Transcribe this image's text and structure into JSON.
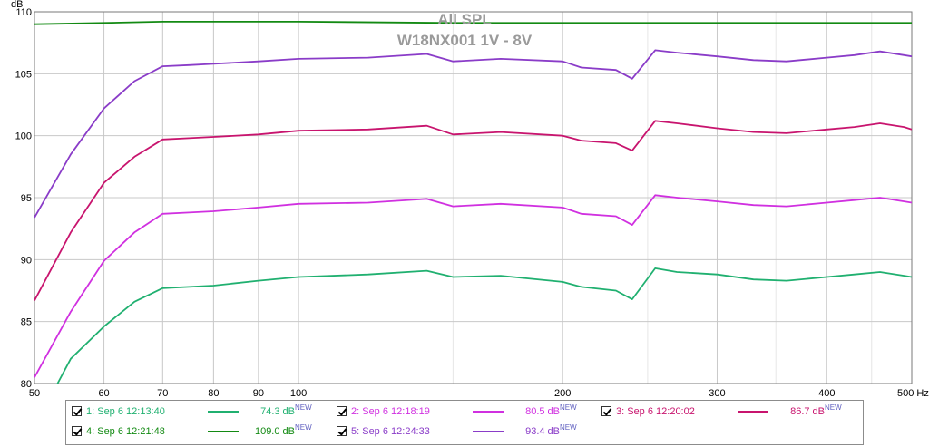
{
  "chart_data": {
    "type": "line",
    "title": "All SPL",
    "subtitle": "W18NX001 1V - 8V",
    "ylabel": "dB",
    "xlabel": "Hz",
    "x_scale": "log",
    "xlim": [
      50,
      500
    ],
    "ylim": [
      80,
      110
    ],
    "grid": true,
    "x_ticks": [
      {
        "value": 50,
        "label": "50"
      },
      {
        "value": 60,
        "label": "60"
      },
      {
        "value": 70,
        "label": "70"
      },
      {
        "value": 80,
        "label": "80"
      },
      {
        "value": 90,
        "label": "90"
      },
      {
        "value": 100,
        "label": "100"
      },
      {
        "value": 200,
        "label": "200"
      },
      {
        "value": 300,
        "label": "300"
      },
      {
        "value": 400,
        "label": "400"
      },
      {
        "value": 500,
        "label": "500 Hz"
      }
    ],
    "y_ticks": [
      {
        "value": 80,
        "label": "80"
      },
      {
        "value": 85,
        "label": "85"
      },
      {
        "value": 90,
        "label": "90"
      },
      {
        "value": 95,
        "label": "95"
      },
      {
        "value": 100,
        "label": "100"
      },
      {
        "value": 105,
        "label": "105"
      },
      {
        "value": 110,
        "label": "110"
      }
    ],
    "series": [
      {
        "name": "1: Sep 6 12:13:40",
        "level": "74.3 dB",
        "color": "#20b070",
        "points": [
          [
            50,
            76.5
          ],
          [
            55,
            82
          ],
          [
            60,
            84.6
          ],
          [
            65,
            86.6
          ],
          [
            70,
            87.7
          ],
          [
            75,
            87.8
          ],
          [
            80,
            87.9
          ],
          [
            90,
            88.3
          ],
          [
            100,
            88.6
          ],
          [
            120,
            88.8
          ],
          [
            140,
            89.1
          ],
          [
            150,
            88.6
          ],
          [
            170,
            88.7
          ],
          [
            200,
            88.2
          ],
          [
            210,
            87.8
          ],
          [
            230,
            87.5
          ],
          [
            240,
            86.8
          ],
          [
            255,
            89.3
          ],
          [
            270,
            89.0
          ],
          [
            300,
            88.8
          ],
          [
            330,
            88.4
          ],
          [
            360,
            88.3
          ],
          [
            400,
            88.6
          ],
          [
            430,
            88.8
          ],
          [
            460,
            89.0
          ],
          [
            490,
            88.7
          ],
          [
            500,
            88.6
          ]
        ]
      },
      {
        "name": "2: Sep 6 12:18:19",
        "level": "80.5 dB",
        "color": "#d030e0",
        "points": [
          [
            50,
            80.5
          ],
          [
            55,
            85.8
          ],
          [
            60,
            89.9
          ],
          [
            65,
            92.2
          ],
          [
            70,
            93.7
          ],
          [
            75,
            93.8
          ],
          [
            80,
            93.9
          ],
          [
            90,
            94.2
          ],
          [
            100,
            94.5
          ],
          [
            120,
            94.6
          ],
          [
            140,
            94.9
          ],
          [
            150,
            94.3
          ],
          [
            170,
            94.5
          ],
          [
            200,
            94.2
          ],
          [
            210,
            93.7
          ],
          [
            230,
            93.5
          ],
          [
            240,
            92.8
          ],
          [
            255,
            95.2
          ],
          [
            270,
            95.0
          ],
          [
            300,
            94.7
          ],
          [
            330,
            94.4
          ],
          [
            360,
            94.3
          ],
          [
            400,
            94.6
          ],
          [
            430,
            94.8
          ],
          [
            460,
            95.0
          ],
          [
            490,
            94.7
          ],
          [
            500,
            94.6
          ]
        ]
      },
      {
        "name": "3: Sep 6 12:20:02",
        "level": "86.7 dB",
        "color": "#c8146e",
        "points": [
          [
            50,
            86.7
          ],
          [
            55,
            92.2
          ],
          [
            60,
            96.2
          ],
          [
            65,
            98.3
          ],
          [
            70,
            99.7
          ],
          [
            75,
            99.8
          ],
          [
            80,
            99.9
          ],
          [
            90,
            100.1
          ],
          [
            100,
            100.4
          ],
          [
            120,
            100.5
          ],
          [
            140,
            100.8
          ],
          [
            150,
            100.1
          ],
          [
            170,
            100.3
          ],
          [
            200,
            100.0
          ],
          [
            210,
            99.6
          ],
          [
            230,
            99.4
          ],
          [
            240,
            98.8
          ],
          [
            255,
            101.2
          ],
          [
            270,
            101.0
          ],
          [
            300,
            100.6
          ],
          [
            330,
            100.3
          ],
          [
            360,
            100.2
          ],
          [
            400,
            100.5
          ],
          [
            430,
            100.7
          ],
          [
            460,
            101.0
          ],
          [
            490,
            100.7
          ],
          [
            500,
            100.5
          ]
        ]
      },
      {
        "name": "4: Sep 6 12:21:48",
        "level": "109.0 dB",
        "color": "#138a13",
        "points": [
          [
            50,
            109.0
          ],
          [
            60,
            109.1
          ],
          [
            70,
            109.2
          ],
          [
            100,
            109.2
          ],
          [
            150,
            109.1
          ],
          [
            200,
            109.1
          ],
          [
            300,
            109.1
          ],
          [
            400,
            109.1
          ],
          [
            500,
            109.1
          ]
        ]
      },
      {
        "name": "5: Sep 6 12:24:33",
        "level": "93.4 dB",
        "color": "#8a3cc8",
        "points": [
          [
            50,
            93.4
          ],
          [
            55,
            98.5
          ],
          [
            60,
            102.2
          ],
          [
            65,
            104.4
          ],
          [
            70,
            105.6
          ],
          [
            75,
            105.7
          ],
          [
            80,
            105.8
          ],
          [
            90,
            106.0
          ],
          [
            100,
            106.2
          ],
          [
            120,
            106.3
          ],
          [
            140,
            106.6
          ],
          [
            150,
            106.0
          ],
          [
            170,
            106.2
          ],
          [
            200,
            106.0
          ],
          [
            210,
            105.5
          ],
          [
            230,
            105.3
          ],
          [
            240,
            104.6
          ],
          [
            255,
            106.9
          ],
          [
            270,
            106.7
          ],
          [
            300,
            106.4
          ],
          [
            330,
            106.1
          ],
          [
            360,
            106.0
          ],
          [
            400,
            106.3
          ],
          [
            430,
            106.5
          ],
          [
            460,
            106.8
          ],
          [
            490,
            106.5
          ],
          [
            500,
            106.4
          ]
        ]
      }
    ],
    "legend_placement": "bottom"
  },
  "legend": {
    "new_tag": "NEW",
    "items": [
      {
        "label": "1: Sep 6 12:13:40",
        "value": "74.3 dB",
        "color": "#20b070",
        "checked": true
      },
      {
        "label": "2: Sep 6 12:18:19",
        "value": "80.5 dB",
        "color": "#d030e0",
        "checked": true
      },
      {
        "label": "3: Sep 6 12:20:02",
        "value": "86.7 dB",
        "color": "#c8146e",
        "checked": true
      },
      {
        "label": "4: Sep 6 12:21:48",
        "value": "109.0 dB",
        "color": "#138a13",
        "checked": true
      },
      {
        "label": "5: Sep 6 12:24:33",
        "value": "93.4 dB",
        "color": "#8a3cc8",
        "checked": true
      }
    ]
  }
}
